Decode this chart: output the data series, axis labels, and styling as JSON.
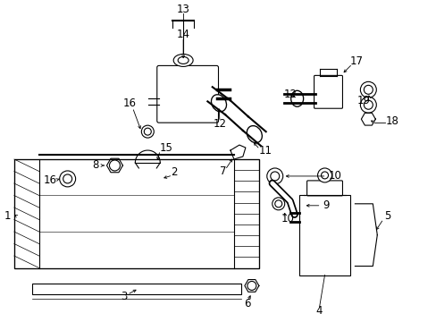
{
  "background_color": "#ffffff",
  "line_color": "#000000",
  "figsize": [
    4.89,
    3.6
  ],
  "dpi": 100,
  "fontsize": 8.5
}
